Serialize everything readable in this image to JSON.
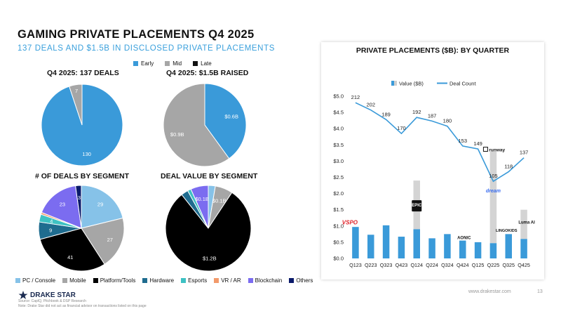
{
  "title": "GAMING PRIVATE PLACEMENTS Q4 2025",
  "subtitle": "137 DEALS AND $1.5B IN DISCLOSED PRIVATE PLACEMENTS",
  "stage_legend": [
    {
      "label": "Early",
      "color": "#3a9ad9"
    },
    {
      "label": "Mid",
      "color": "#a6a6a6"
    },
    {
      "label": "Late",
      "color": "#111111"
    }
  ],
  "segment_legend": [
    {
      "label": "PC / Console",
      "color": "#86c2e8"
    },
    {
      "label": "Mobile",
      "color": "#a6a6a6"
    },
    {
      "label": "Platform/Tools",
      "color": "#000000"
    },
    {
      "label": "Hardware",
      "color": "#1f6c8f"
    },
    {
      "label": "Esports",
      "color": "#3ec1c3"
    },
    {
      "label": "VR / AR",
      "color": "#f29a6b"
    },
    {
      "label": "Blockchain",
      "color": "#7b6cf0"
    },
    {
      "label": "Others",
      "color": "#0a1a6a"
    }
  ],
  "chart_data": [
    {
      "type": "pie",
      "title": "Q4 2025: 137 DEALS",
      "slices": [
        {
          "name": "Early",
          "value": 130,
          "label": "130"
        },
        {
          "name": "Mid",
          "value": 7,
          "label": "7"
        }
      ]
    },
    {
      "type": "pie",
      "title": "Q4 2025: $1.5B RAISED",
      "slices": [
        {
          "name": "Early",
          "value": 0.6,
          "label": "$0.6B"
        },
        {
          "name": "Mid",
          "value": 0.9,
          "label": "$0.9B"
        }
      ]
    },
    {
      "type": "pie",
      "title": "# OF DEALS BY SEGMENT",
      "slices": [
        {
          "name": "PC / Console",
          "value": 29,
          "label": "29"
        },
        {
          "name": "Mobile",
          "value": 27,
          "label": "27"
        },
        {
          "name": "Platform/Tools",
          "value": 41,
          "label": "41"
        },
        {
          "name": "Hardware",
          "value": 9,
          "label": "9"
        },
        {
          "name": "Esports",
          "value": 4,
          "label": "4"
        },
        {
          "name": "VR / AR",
          "value": 1,
          "label": ""
        },
        {
          "name": "Blockchain",
          "value": 23,
          "label": "23"
        },
        {
          "name": "Others",
          "value": 3,
          "label": "3"
        }
      ]
    },
    {
      "type": "pie",
      "title": "DEAL VALUE BY SEGMENT",
      "slices": [
        {
          "name": "PC / Console",
          "value": 0.04,
          "label": ""
        },
        {
          "name": "Mobile",
          "value": 0.1,
          "label": "$0.1B"
        },
        {
          "name": "Platform/Tools",
          "value": 1.2,
          "label": "$1.2B"
        },
        {
          "name": "Hardware",
          "value": 0.04,
          "label": ""
        },
        {
          "name": "Esports",
          "value": 0.02,
          "label": ""
        },
        {
          "name": "Blockchain",
          "value": 0.1,
          "label": "$0.1B"
        }
      ]
    },
    {
      "type": "bar",
      "title": "PRIVATE PLACEMENTS ($B): BY QUARTER",
      "legend": [
        "Value ($B)",
        "Deal Count"
      ],
      "categories": [
        "Q123",
        "Q223",
        "Q323",
        "Q423",
        "Q124",
        "Q224",
        "Q324",
        "Q424",
        "Q125",
        "Q225",
        "Q325",
        "Q425"
      ],
      "y_ticks": [
        "$0.0",
        "$0.5",
        "$1.0",
        "$1.5",
        "$2.0",
        "$2.5",
        "$3.0",
        "$3.5",
        "$4.0",
        "$4.5",
        "$5.0"
      ],
      "ylim": [
        0,
        5
      ],
      "value_base": [
        0.97,
        0.73,
        1.02,
        0.67,
        0.9,
        0.62,
        0.75,
        0.55,
        0.5,
        0.47,
        0.75,
        0.6
      ],
      "value_highlight": [
        0,
        0,
        0,
        0,
        1.5,
        0,
        0,
        0,
        0,
        2.83,
        0,
        0.9
      ],
      "deal_count": [
        212,
        202,
        189,
        170,
        192,
        187,
        180,
        153,
        149,
        105,
        118,
        137
      ],
      "deal_count_scale": {
        "count_at_top": 212,
        "axis_value_at_top": 4.8
      },
      "annotations": [
        {
          "quarter": "Q123",
          "text": "VSPO"
        },
        {
          "quarter": "Q124",
          "text": "EPIC"
        },
        {
          "quarter": "Q424",
          "text": "AONIC"
        },
        {
          "quarter": "Q225",
          "text": "runway"
        },
        {
          "quarter": "Q225",
          "text": "dream"
        },
        {
          "quarter": "Q325",
          "text": "LINGOKIDS"
        },
        {
          "quarter": "Q425",
          "text": "Luma AI"
        }
      ]
    }
  ],
  "footer": {
    "brand": "DRAKE STAR",
    "source": "Source: CapIQ, Pitchbook & DSP Research",
    "note": "Note: Drake Star did not act as financial advisor on transactions listed on this page",
    "url": "www.drakestar.com",
    "page": "13"
  }
}
